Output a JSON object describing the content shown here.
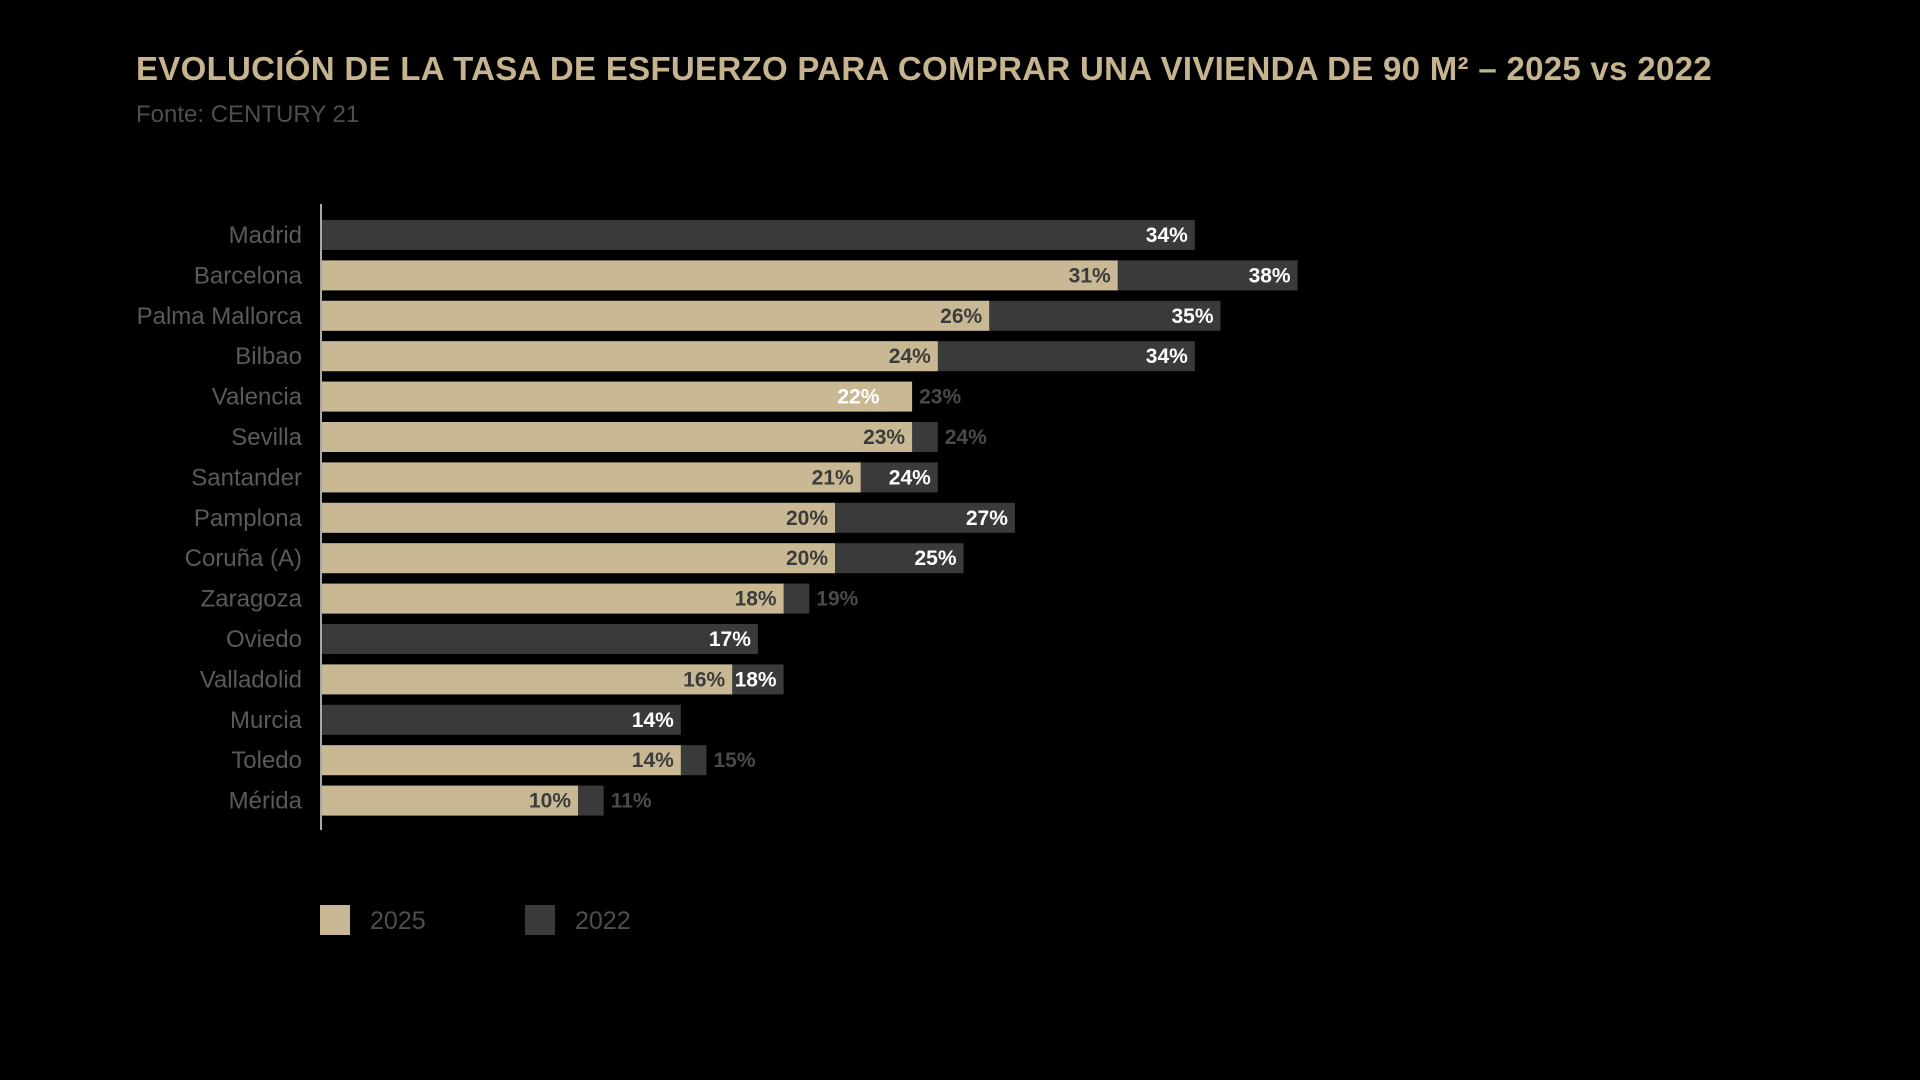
{
  "title": "EVOLUCIÓN DE LA TASA DE ESFUERZO PARA COMPRAR UNA VIVIENDA DE 90 M² – 2025 vs 2022",
  "subtitle": "Fonte: CENTURY 21",
  "colors": {
    "background": "#000000",
    "bar_2025": "#c8b893",
    "bar_2022": "#3a3a3a",
    "label_dark": "#3c3c3c",
    "label_light": "#ffffff",
    "label_muted": "#4a4a4a",
    "axis": "#a8a8a8"
  },
  "chart_data": {
    "type": "bar",
    "orientation": "horizontal",
    "title": "EVOLUCIÓN DE LA TASA DE ESFUERZO PARA COMPRAR UNA VIVIENDA DE 90 M² – 2025 vs 2022",
    "subtitle": "Fonte: CENTURY 21",
    "categories": [
      "Madrid",
      "Barcelona",
      "Palma Mallorca",
      "Bilbao",
      "Valencia",
      "Sevilla",
      "Santander",
      "Pamplona",
      "Coruña (A)",
      "Zaragoza",
      "Oviedo",
      "Valladolid",
      "Murcia",
      "Toledo",
      "Mérida"
    ],
    "series": [
      {
        "name": "2025",
        "values": [
          null,
          31,
          26,
          24,
          23,
          23,
          21,
          20,
          20,
          18,
          null,
          16,
          null,
          14,
          10
        ],
        "labels": [
          "",
          "31%",
          "26%",
          "24%",
          "23%",
          "23%",
          "21%",
          "20%",
          "20%",
          "18%",
          "",
          "16%",
          "",
          "14%",
          "10%"
        ]
      },
      {
        "name": "2022",
        "values": [
          34,
          38,
          35,
          34,
          22,
          24,
          24,
          27,
          25,
          19,
          17,
          18,
          14,
          15,
          11
        ],
        "labels": [
          "34%",
          "38%",
          "35%",
          "34%",
          "22%",
          "24%",
          "24%",
          "27%",
          "25%",
          "19%",
          "17%",
          "18%",
          "14%",
          "15%",
          "11%"
        ]
      }
    ],
    "xlim": [
      0,
      40
    ],
    "grid": false,
    "legend": "bottom-left"
  }
}
